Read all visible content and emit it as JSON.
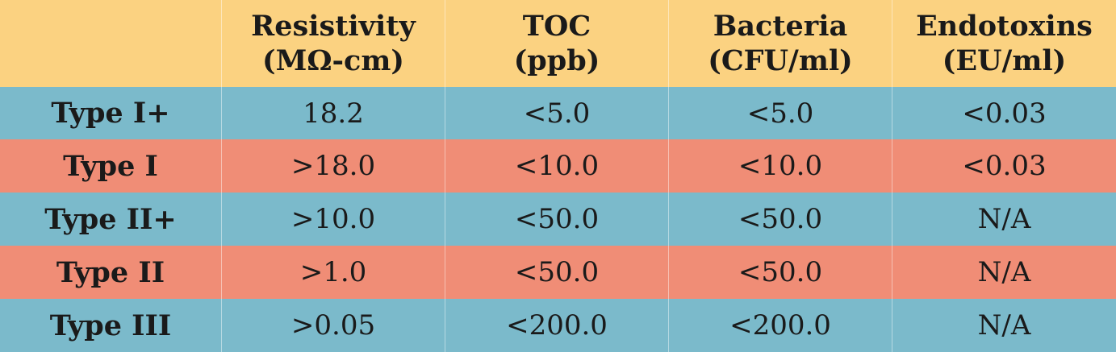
{
  "header": {
    "corner": "",
    "columns": [
      {
        "line1": "Resistivity",
        "line2": "(MΩ-cm)"
      },
      {
        "line1": "TOC",
        "line2": "(ppb)"
      },
      {
        "line1": "Bacteria",
        "line2": "(CFU/ml)"
      },
      {
        "line1": "Endotoxins",
        "line2": "(EU/ml)"
      }
    ]
  },
  "rows": [
    {
      "label": "Type I+",
      "values": [
        "18.2",
        "<5.0",
        "<5.0",
        "<0.03"
      ]
    },
    {
      "label": "Type I",
      "values": [
        ">18.0",
        "<10.0",
        "<10.0",
        "<0.03"
      ]
    },
    {
      "label": "Type II+",
      "values": [
        ">10.0",
        "<50.0",
        "<50.0",
        "N/A"
      ]
    },
    {
      "label": "Type II",
      "values": [
        ">1.0",
        "<50.0",
        "<50.0",
        "N/A"
      ]
    },
    {
      "label": "Type III",
      "values": [
        ">0.05",
        "<200.0",
        "<200.0",
        "N/A"
      ]
    }
  ],
  "colors": {
    "header": "#fbd281",
    "row_odd": "#7bbacb",
    "row_even": "#f08d76"
  }
}
